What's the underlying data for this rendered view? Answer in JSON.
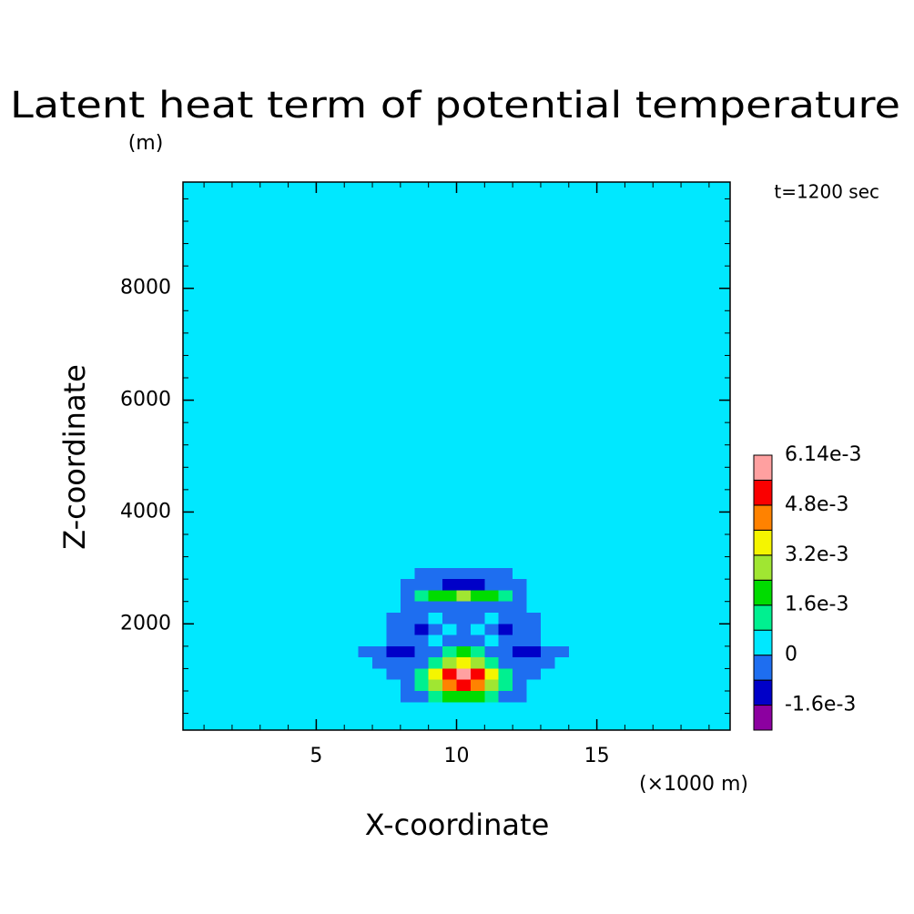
{
  "chart_data": {
    "type": "contour",
    "title": "Latent heat term of potential temperature",
    "y_unit": "(m)",
    "x_unit": "(×1000 m)",
    "annotation": "t=1200 sec",
    "xlabel": "X-coordinate",
    "ylabel": "Z-coordinate",
    "xlim": [
      0.25,
      19.75
    ],
    "ylim": [
      100,
      9900
    ],
    "xticks": [
      5,
      10,
      15
    ],
    "yticks": [
      2000,
      4000,
      6000,
      8000
    ],
    "xticks_minor": [
      1,
      2,
      3,
      4,
      5,
      6,
      7,
      8,
      9,
      10,
      11,
      12,
      13,
      14,
      15,
      16,
      17,
      18,
      19
    ],
    "yticks_minor": [
      400,
      800,
      1200,
      1600,
      2000,
      2400,
      2800,
      3200,
      3600,
      4000,
      4400,
      4800,
      5200,
      5600,
      6000,
      6400,
      6800,
      7200,
      7600,
      8000,
      8400,
      8800,
      9200,
      9600
    ],
    "background_value": 0,
    "x": [
      6.75,
      7.25,
      7.75,
      8.25,
      8.75,
      9.25,
      9.75,
      10.25,
      10.75,
      11.25,
      11.75,
      12.25,
      12.75,
      13.25,
      13.75
    ],
    "y": [
      700,
      900,
      1100,
      1300,
      1500,
      1700,
      1900,
      2100,
      2300,
      2500,
      2700,
      2900
    ],
    "values": [
      [
        0,
        0,
        0,
        -0.0004,
        -0.0004,
        0.0012,
        0.002,
        0.002,
        0.002,
        0.0012,
        -0.0004,
        -0.0004,
        0,
        0,
        0
      ],
      [
        0,
        0,
        0,
        -0.0004,
        0.0012,
        0.0028,
        0.0044,
        0.0052,
        0.0044,
        0.0028,
        0.0012,
        -0.0004,
        0,
        0,
        0
      ],
      [
        0,
        0,
        -0.0004,
        -0.0004,
        0.0012,
        0.0036,
        0.0052,
        0.006,
        0.0052,
        0.0036,
        0.0012,
        -0.0004,
        -0.0004,
        0,
        0
      ],
      [
        0,
        -0.0004,
        -0.0004,
        -0.0004,
        -0.0004,
        0.0012,
        0.0028,
        0.0036,
        0.0028,
        0.0012,
        -0.0004,
        -0.0004,
        -0.0004,
        -0.0004,
        0
      ],
      [
        -0.0004,
        -0.0004,
        -0.0012,
        -0.0012,
        -0.0004,
        -0.0004,
        0.0012,
        0.002,
        0.0012,
        -0.0004,
        -0.0004,
        -0.0012,
        -0.0012,
        -0.0004,
        -0.0004
      ],
      [
        0,
        0,
        -0.0004,
        -0.0004,
        -0.0004,
        0,
        -0.0004,
        -0.0004,
        -0.0004,
        0,
        -0.0004,
        -0.0004,
        -0.0004,
        0,
        0
      ],
      [
        0,
        0,
        -0.0004,
        -0.0004,
        -0.0012,
        -0.0004,
        0,
        -0.0004,
        0,
        -0.0004,
        -0.0012,
        -0.0004,
        -0.0004,
        0,
        0
      ],
      [
        0,
        0,
        -0.0004,
        -0.0004,
        -0.0004,
        0,
        -0.0004,
        -0.0004,
        -0.0004,
        0,
        -0.0004,
        -0.0004,
        -0.0004,
        0,
        0
      ],
      [
        0,
        0,
        0,
        -0.0004,
        -0.0004,
        -0.0004,
        -0.0004,
        -0.0004,
        -0.0004,
        -0.0004,
        -0.0004,
        -0.0004,
        0,
        0,
        0
      ],
      [
        0,
        0,
        0,
        -0.0004,
        0.0012,
        0.002,
        0.002,
        0.0028,
        0.002,
        0.002,
        0.0012,
        -0.0004,
        0,
        0,
        0
      ],
      [
        0,
        0,
        0,
        -0.0004,
        -0.0004,
        -0.0004,
        -0.0012,
        -0.0012,
        -0.0012,
        -0.0004,
        -0.0004,
        -0.0004,
        0,
        0,
        0
      ],
      [
        0,
        0,
        0,
        0,
        -0.0004,
        -0.0004,
        -0.0004,
        -0.0004,
        -0.0004,
        -0.0004,
        -0.0004,
        0,
        0,
        0,
        0
      ]
    ],
    "colorbar": {
      "levels": [
        -0.0024,
        -0.0016,
        -0.0008,
        0,
        0.0008,
        0.0016,
        0.0024,
        0.0032,
        0.004,
        0.0048,
        0.0056,
        0.00614
      ],
      "colors": [
        "#8c00a0",
        "#0000c8",
        "#1e6ef0",
        "#00e8ff",
        "#00f090",
        "#00dc00",
        "#a0e632",
        "#f5f500",
        "#ff8200",
        "#fa0000",
        "#ffa0a0"
      ],
      "ticks": [
        {
          "value": 0.00614,
          "label": "6.14e-3"
        },
        {
          "value": 0.0048,
          "label": "4.8e-3"
        },
        {
          "value": 0.0032,
          "label": "3.2e-3"
        },
        {
          "value": 0.0016,
          "label": "1.6e-3"
        },
        0,
        {
          "value": -0.0016,
          "label": "-1.6e-3"
        }
      ]
    }
  }
}
